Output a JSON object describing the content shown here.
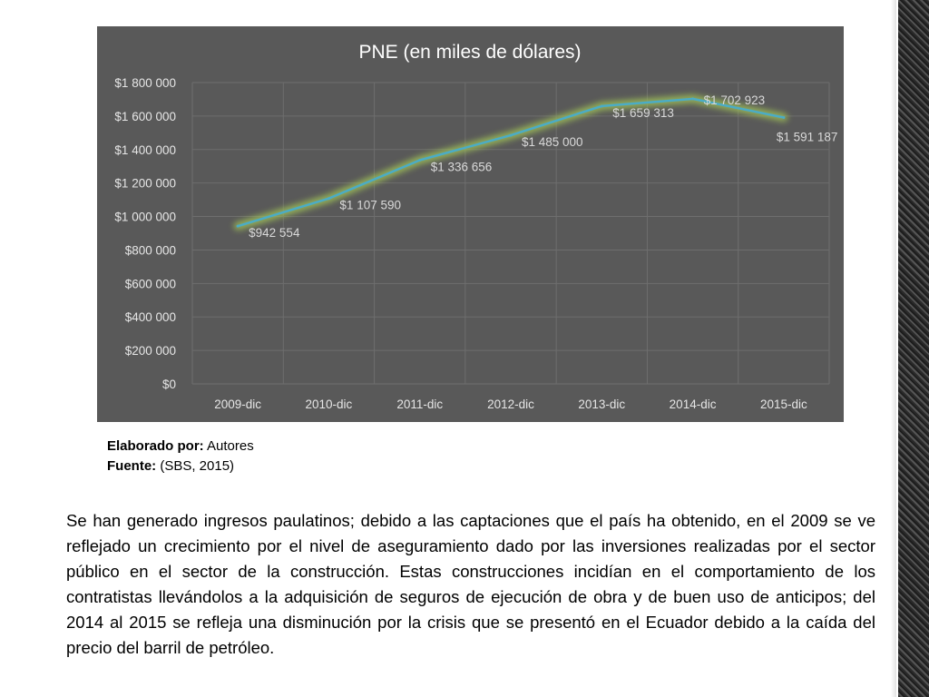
{
  "chart_data": {
    "type": "line",
    "title": "PNE (en miles de dólares)",
    "categories": [
      "2009-dic",
      "2010-dic",
      "2011-dic",
      "2012-dic",
      "2013-dic",
      "2014-dic",
      "2015-dic"
    ],
    "values": [
      942554,
      1107590,
      1336656,
      1485000,
      1659313,
      1702923,
      1591187
    ],
    "data_labels": [
      "$942 554",
      "$1 107 590",
      "$1 336 656",
      "$1 485 000",
      "$1 659 313",
      "$1 702 923",
      "$1 591 187"
    ],
    "y_ticks": [
      0,
      200000,
      400000,
      600000,
      800000,
      1000000,
      1200000,
      1400000,
      1600000,
      1800000
    ],
    "y_tick_labels": [
      "$0",
      "$200 000",
      "$400 000",
      "$600 000",
      "$800 000",
      "$1 000 000",
      "$1 200 000",
      "$1 400 000",
      "$1 600 000",
      "$1 800 000"
    ],
    "ylim": [
      0,
      1800000
    ],
    "xlabel": "",
    "ylabel": "",
    "grid": true,
    "colors": {
      "background": "#595959",
      "line": "#4bacc6",
      "glow": "#9bbb59",
      "grid": "#6e6e6e"
    }
  },
  "credits": {
    "elaborado_label": "Elaborado por:",
    "elaborado_value": " Autores",
    "fuente_label": "Fuente:",
    "fuente_value": " (SBS, 2015)"
  },
  "paragraph": "Se han generado ingresos paulatinos; debido a las captaciones que el país ha obtenido, en el 2009 se ve reflejado un crecimiento por el nivel de aseguramiento dado por las inversiones realizadas por el sector público en el sector de la construcción. Estas construcciones incidían en el comportamiento de los contratistas llevándolos a la adquisición de seguros de ejecución de obra y de buen uso de anticipos; del 2014 al 2015 se refleja una disminución por la crisis que se presentó en el Ecuador debido a la caída del precio del barril de petróleo."
}
